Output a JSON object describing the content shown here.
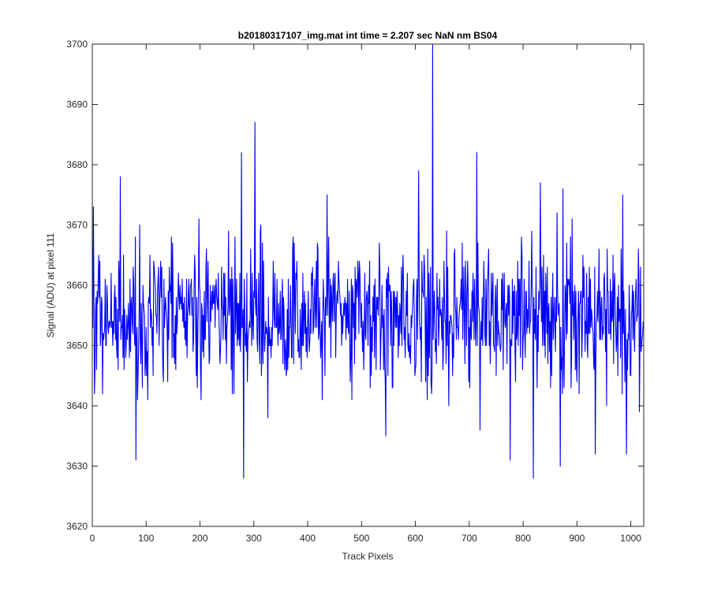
{
  "chart_data": {
    "type": "line",
    "title": "b20180317107_img.mat int time = 2.207 sec  NaN nm BS04",
    "xlabel": "Track Pixels",
    "ylabel": "Signal (ADU) at pixel 111",
    "xlim": [
      0,
      1024
    ],
    "ylim": [
      3620,
      3700
    ],
    "xticks": [
      0,
      100,
      200,
      300,
      400,
      500,
      600,
      700,
      800,
      900,
      1000
    ],
    "yticks": [
      3620,
      3630,
      3640,
      3650,
      3660,
      3670,
      3680,
      3690,
      3700
    ],
    "grid": false,
    "line_color": "#0000ff",
    "series": [
      {
        "n_points": 1024,
        "baseline": 3655,
        "std": 6,
        "min": 3628,
        "max": 3700,
        "notable_points": [
          {
            "x": 2,
            "y": 3673
          },
          {
            "x": 4,
            "y": 3642
          },
          {
            "x": 52,
            "y": 3678
          },
          {
            "x": 81,
            "y": 3631
          },
          {
            "x": 277,
            "y": 3682
          },
          {
            "x": 281,
            "y": 3628
          },
          {
            "x": 302,
            "y": 3687
          },
          {
            "x": 436,
            "y": 3675
          },
          {
            "x": 545,
            "y": 3635
          },
          {
            "x": 606,
            "y": 3679
          },
          {
            "x": 632,
            "y": 3700
          },
          {
            "x": 714,
            "y": 3682
          },
          {
            "x": 720,
            "y": 3636
          },
          {
            "x": 776,
            "y": 3631
          },
          {
            "x": 819,
            "y": 3628
          },
          {
            "x": 832,
            "y": 3677
          },
          {
            "x": 869,
            "y": 3630
          },
          {
            "x": 934,
            "y": 3632
          },
          {
            "x": 985,
            "y": 3675
          },
          {
            "x": 992,
            "y": 3632
          },
          {
            "x": 1016,
            "y": 3639
          }
        ]
      }
    ]
  }
}
